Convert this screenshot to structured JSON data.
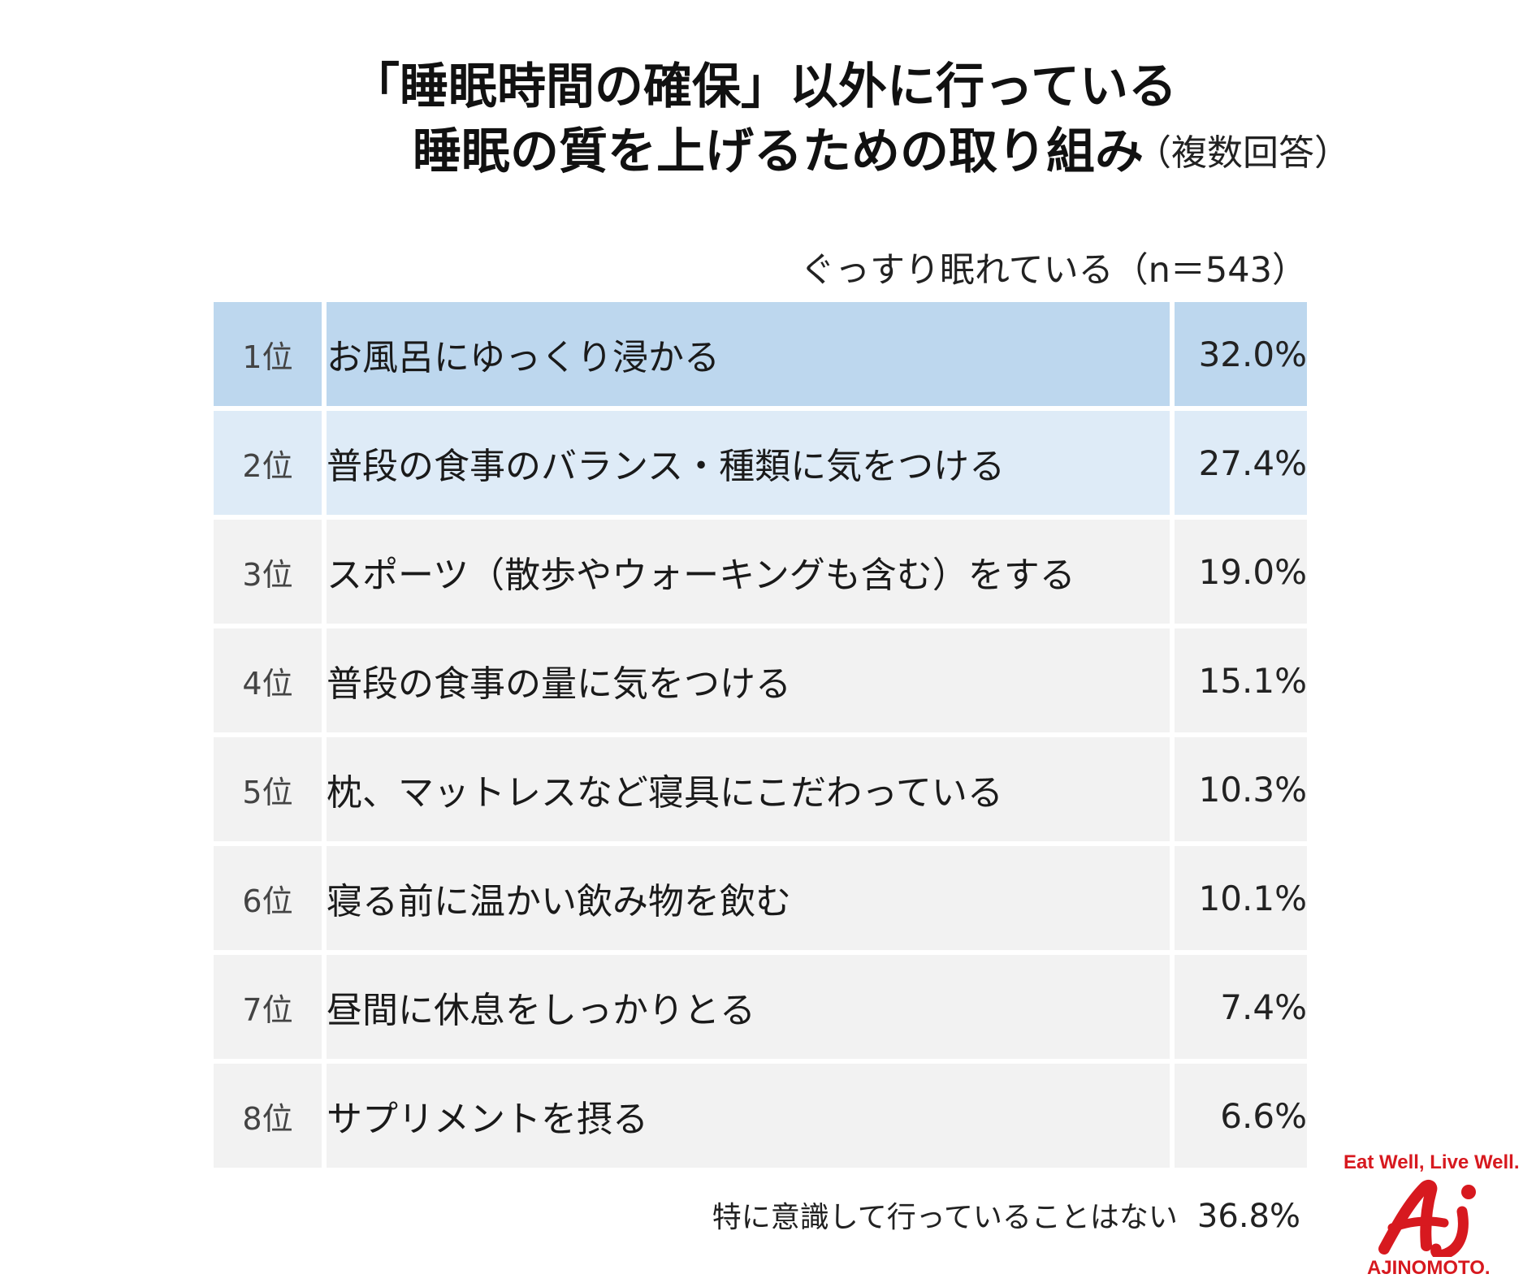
{
  "title_line1": "「睡眠時間の確保」以外に行っている",
  "title_line2": "睡眠の質を上げるための取り組み",
  "title_note": "（複数回答）",
  "sample_label": "ぐっすり眠れている（n＝543）",
  "chart_data": {
    "type": "table",
    "columns": [
      "rank",
      "item",
      "percent"
    ],
    "rows": [
      {
        "rank": "1位",
        "item": "お風呂にゆっくり浸かる",
        "value_text": "32.0%",
        "value": 32.0
      },
      {
        "rank": "2位",
        "item": "普段の食事のバランス・種類に気をつける",
        "value_text": "27.4%",
        "value": 27.4
      },
      {
        "rank": "3位",
        "item": "スポーツ（散歩やウォーキングも含む）をする",
        "value_text": "19.0%",
        "value": 19.0
      },
      {
        "rank": "4位",
        "item": "普段の食事の量に気をつける",
        "value_text": "15.1%",
        "value": 15.1
      },
      {
        "rank": "5位",
        "item": "枕、マットレスなど寝具にこだわっている",
        "value_text": "10.3%",
        "value": 10.3
      },
      {
        "rank": "6位",
        "item": "寝る前に温かい飲み物を飲む",
        "value_text": "10.1%",
        "value": 10.1
      },
      {
        "rank": "7位",
        "item": "昼間に休息をしっかりとる",
        "value_text": "7.4%",
        "value": 7.4
      },
      {
        "rank": "8位",
        "item": "サプリメントを摂る",
        "value_text": "6.6%",
        "value": 6.6
      }
    ],
    "highlight_colors": [
      "#bdd7ee",
      "#deebf7"
    ],
    "row_color": "#f2f2f2"
  },
  "footer": {
    "label": "特に意識して行っていることはない",
    "value_text": "36.8%"
  },
  "logo": {
    "tagline": "Eat Well, Live Well.",
    "brand": "AJINOMOTO.",
    "color": "#d7191f"
  }
}
